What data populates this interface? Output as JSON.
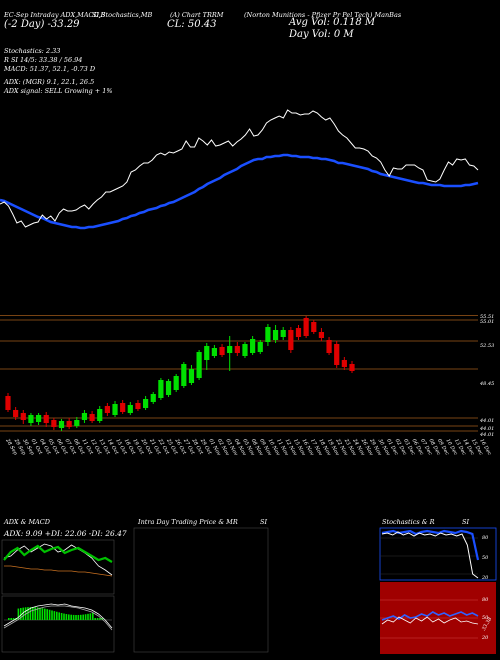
{
  "header": {
    "line1": [
      {
        "id": "h-timeframe",
        "text": "EC-Sep Intraday ADX,MACD,B"
      },
      {
        "id": "h-stoch",
        "text": "SI,Stochastics,MB"
      },
      {
        "id": "h-chart",
        "text": "(A) Chart TRRM"
      },
      {
        "id": "h-company",
        "text": "(Norton Munitions - Pfizer Pr Pel Tech) ManBas"
      }
    ],
    "day_change": "(-2 Day) -33.29",
    "close": "CL: 50.43",
    "avg_vol": "Avg Vol: 0.118 M",
    "day_vol": "Day Vol: 0   M"
  },
  "indicators": [
    "Stochastics: 2.33",
    "R         SI 14/5: 33.38 / 56.94",
    "MACD: 51.37,  52.1,  -0.73 D",
    "ADX:               (MGR) 9.1,  22.1,  26.5",
    "ADX  signal: SELL Growing + 1%"
  ],
  "price_labels": [
    "55.51",
    "55.01",
    "52.53",
    "48.45",
    "44.01",
    "44.01",
    "44.01"
  ],
  "date_labels": [
    "28 Sep",
    "29 Sep",
    "30 Sep",
    "01 Oct",
    "04 Oct",
    "05 Oct",
    "06 Oct",
    "07 Oct",
    "08 Oct",
    "11 Oct",
    "12 Oct",
    "13 Oct",
    "14 Oct",
    "15 Oct",
    "18 Oct",
    "19 Oct",
    "20 Oct",
    "21 Oct",
    "22 Oct",
    "25 Oct",
    "26 Oct",
    "27 Oct",
    "28 Oct",
    "29 Oct",
    "01 Nov",
    "02 Nov",
    "03 Nov",
    "04 Nov",
    "05 Nov",
    "08 Nov",
    "09 Nov",
    "10 Nov",
    "11 Nov",
    "12 Nov",
    "15 Nov",
    "16 Nov",
    "17 Nov",
    "18 Nov",
    "19 Nov",
    "22 Nov",
    "23 Nov",
    "24 Nov",
    "26 Nov",
    "29 Nov",
    "30 Nov",
    "01 Dec",
    "02 Dec",
    "03 Dec",
    "06 Dec",
    "07 Dec",
    "08 Dec",
    "09 Dec",
    "10 Dec",
    "13 Dec",
    "14 Dec",
    "15 Dec",
    "16 Dec"
  ],
  "panels": {
    "adx_title": "ADX  & MACD",
    "adx_values": "ADX: 9.09  +DI: 22.06  -DI: 26.47",
    "intraday_title": "Intra  Day Trading Price  & MR",
    "intraday_si": "SI",
    "stoch_title": "Stochastics & R",
    "stoch_si": "SI",
    "stoch_ticks": [
      "80",
      "50",
      "20"
    ],
    "rsi_ticks": [
      "80",
      "50",
      "20"
    ],
    "rsi_value": "33.38"
  },
  "colors": {
    "up": "#00e000",
    "down": "#e00000",
    "ma": "#1a4fff",
    "price_line": "#ffffff",
    "orange_line": "#c87020",
    "rsi_bg": "#a00000"
  },
  "chart_data": {
    "type": "line",
    "series": [
      {
        "values": [
          204,
          202,
          206,
          214,
          223,
          221,
          227,
          225,
          223,
          222,
          215,
          219,
          216,
          221,
          213,
          209,
          211,
          211,
          210,
          207,
          205,
          209,
          204,
          200,
          197,
          192,
          192,
          190,
          188,
          186,
          182,
          172,
          170,
          166,
          163,
          163,
          160,
          155,
          153,
          155,
          152,
          153,
          151,
          149,
          141,
          147,
          147,
          138,
          141,
          145,
          140,
          146,
          145,
          143,
          141,
          146,
          142,
          139,
          135,
          129,
          136,
          135,
          130,
          123,
          120,
          118,
          116,
          118,
          110,
          113,
          113,
          115,
          114,
          114,
          111,
          113,
          117,
          120,
          118,
          124,
          131,
          135,
          138,
          143,
          148,
          148,
          149,
          151,
          156,
          158,
          162,
          170,
          176,
          168,
          169,
          169,
          165,
          165,
          165,
          168,
          170,
          180,
          181,
          182,
          179,
          170,
          162,
          165,
          159,
          160,
          159,
          165,
          166,
          170
        ]
      },
      {
        "values": [
          200,
          201,
          203,
          205,
          207,
          209,
          211,
          213,
          215,
          217,
          218,
          220,
          222,
          223,
          224,
          225,
          226,
          227,
          227,
          228,
          228,
          227,
          227,
          226,
          225,
          224,
          223,
          222,
          221,
          219,
          218,
          216,
          215,
          213,
          212,
          210,
          209,
          208,
          206,
          205,
          203,
          202,
          200,
          198,
          196,
          194,
          192,
          189,
          187,
          184,
          182,
          180,
          178,
          175,
          173,
          171,
          169,
          166,
          164,
          162,
          160,
          159,
          159,
          157,
          157,
          156,
          156,
          155,
          155,
          156,
          156,
          157,
          157,
          157,
          158,
          158,
          159,
          159,
          160,
          161,
          163,
          163,
          164,
          165,
          166,
          167,
          168,
          169,
          171,
          172,
          174,
          175,
          176,
          177,
          178,
          179,
          180,
          181,
          182,
          183,
          183,
          184,
          185,
          185,
          185,
          186,
          186,
          186,
          186,
          186,
          185,
          185,
          184,
          183
        ]
      }
    ],
    "candles": [
      {
        "c": "down",
        "o": 396,
        "cl": 410,
        "h": 393,
        "l": 412
      },
      {
        "c": "down",
        "o": 410,
        "cl": 417,
        "h": 407,
        "l": 420
      },
      {
        "c": "down",
        "o": 413,
        "cl": 420,
        "h": 410,
        "l": 424
      },
      {
        "c": "up",
        "o": 423,
        "cl": 415,
        "h": 413,
        "l": 426
      },
      {
        "c": "up",
        "o": 422,
        "cl": 415,
        "h": 413,
        "l": 425
      },
      {
        "c": "down",
        "o": 415,
        "cl": 423,
        "h": 412,
        "l": 427
      },
      {
        "c": "down",
        "o": 420,
        "cl": 427,
        "h": 418,
        "l": 430
      },
      {
        "c": "up",
        "o": 428,
        "cl": 421,
        "h": 419,
        "l": 431
      },
      {
        "c": "down",
        "o": 421,
        "cl": 427,
        "h": 418,
        "l": 429
      },
      {
        "c": "up",
        "o": 426,
        "cl": 420,
        "h": 417,
        "l": 428
      },
      {
        "c": "up",
        "o": 420,
        "cl": 413,
        "h": 410,
        "l": 423
      },
      {
        "c": "down",
        "o": 414,
        "cl": 421,
        "h": 411,
        "l": 423
      },
      {
        "c": "up",
        "o": 421,
        "cl": 409,
        "h": 406,
        "l": 423
      },
      {
        "c": "down",
        "o": 406,
        "cl": 413,
        "h": 403,
        "l": 416
      },
      {
        "c": "up",
        "o": 415,
        "cl": 404,
        "h": 401,
        "l": 417
      },
      {
        "c": "down",
        "o": 403,
        "cl": 412,
        "h": 400,
        "l": 414
      },
      {
        "c": "up",
        "o": 413,
        "cl": 405,
        "h": 402,
        "l": 415
      },
      {
        "c": "down",
        "o": 403,
        "cl": 409,
        "h": 400,
        "l": 411
      },
      {
        "c": "up",
        "o": 408,
        "cl": 399,
        "h": 396,
        "l": 410
      },
      {
        "c": "up",
        "o": 402,
        "cl": 394,
        "h": 392,
        "l": 404
      },
      {
        "c": "up",
        "o": 398,
        "cl": 380,
        "h": 378,
        "l": 400
      },
      {
        "c": "up",
        "o": 395,
        "cl": 381,
        "h": 379,
        "l": 397
      },
      {
        "c": "up",
        "o": 390,
        "cl": 376,
        "h": 374,
        "l": 392
      },
      {
        "c": "up",
        "o": 386,
        "cl": 364,
        "h": 362,
        "l": 388
      },
      {
        "c": "up",
        "o": 383,
        "cl": 369,
        "h": 365,
        "l": 385
      },
      {
        "c": "up",
        "o": 378,
        "cl": 352,
        "h": 350,
        "l": 380
      },
      {
        "c": "up",
        "o": 360,
        "cl": 346,
        "h": 343,
        "l": 370
      },
      {
        "c": "up",
        "o": 356,
        "cl": 348,
        "h": 345,
        "l": 358
      },
      {
        "c": "down",
        "o": 347,
        "cl": 355,
        "h": 344,
        "l": 357
      },
      {
        "c": "up",
        "o": 353,
        "cl": 346,
        "h": 336,
        "l": 371
      },
      {
        "c": "down",
        "o": 346,
        "cl": 353,
        "h": 342,
        "l": 356
      },
      {
        "c": "up",
        "o": 356,
        "cl": 344,
        "h": 342,
        "l": 358
      },
      {
        "c": "up",
        "o": 353,
        "cl": 339,
        "h": 336,
        "l": 355
      },
      {
        "c": "up",
        "o": 352,
        "cl": 342,
        "h": 340,
        "l": 354
      },
      {
        "c": "up",
        "o": 342,
        "cl": 327,
        "h": 324,
        "l": 346
      },
      {
        "c": "up",
        "o": 340,
        "cl": 330,
        "h": 325,
        "l": 343
      },
      {
        "c": "up",
        "o": 337,
        "cl": 330,
        "h": 327,
        "l": 340
      },
      {
        "c": "down",
        "o": 330,
        "cl": 350,
        "h": 327,
        "l": 353
      },
      {
        "c": "down",
        "o": 328,
        "cl": 337,
        "h": 325,
        "l": 340
      },
      {
        "c": "down",
        "o": 318,
        "cl": 336,
        "h": 316,
        "l": 338
      },
      {
        "c": "down",
        "o": 322,
        "cl": 332,
        "h": 320,
        "l": 334
      },
      {
        "c": "down",
        "o": 332,
        "cl": 338,
        "h": 328,
        "l": 341
      },
      {
        "c": "down",
        "o": 340,
        "cl": 353,
        "h": 337,
        "l": 355
      },
      {
        "c": "down",
        "o": 344,
        "cl": 365,
        "h": 341,
        "l": 368
      },
      {
        "c": "down",
        "o": 360,
        "cl": 367,
        "h": 357,
        "l": 370
      },
      {
        "c": "down",
        "o": 364,
        "cl": 371,
        "h": 361,
        "l": 373
      }
    ]
  }
}
